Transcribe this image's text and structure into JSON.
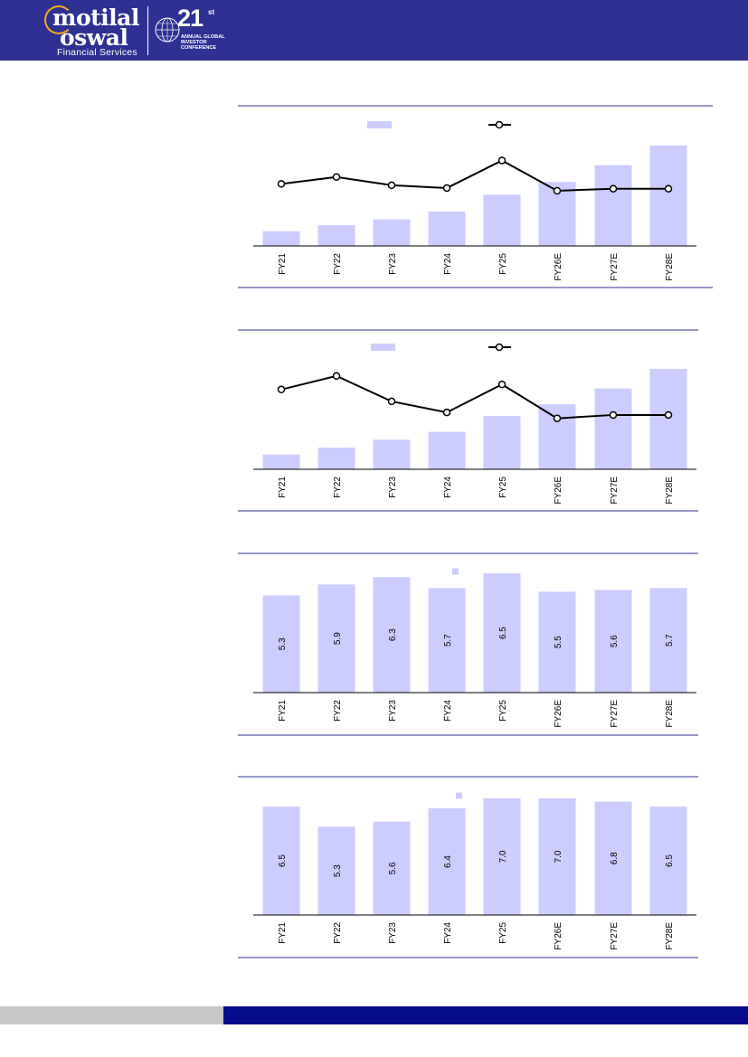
{
  "header": {
    "brand_line1": "motilal",
    "brand_line2": "oswal",
    "brand_line3": "Financial Services",
    "conference_number": "21",
    "conference_suffix": "st",
    "conference_lines": [
      "ANNUAL GLOBAL",
      "INVESTOR",
      "CONFERENCE"
    ]
  },
  "colors": {
    "header_bg": "#2e3192",
    "bar": "#ccccff",
    "line": "#000000",
    "rule": "#2e3192",
    "footer_left": "#c8c8c8",
    "footer_right": "#050c8a"
  },
  "chart_data": [
    {
      "type": "bar",
      "categories": [
        "FY21",
        "FY22",
        "FY23",
        "FY24",
        "FY25",
        "FY26E",
        "FY27E",
        "FY28E"
      ],
      "values": [
        15,
        21,
        27,
        35,
        52,
        65,
        82,
        102
      ],
      "line_values": [
        25,
        30,
        24,
        22,
        42,
        20,
        21.5,
        21.5
      ],
      "legend": [
        "",
        ""
      ],
      "ylim": [
        0,
        112
      ],
      "line_ylim": [
        -20,
        60
      ],
      "data_labels": false
    },
    {
      "type": "bar",
      "categories": [
        "FY21",
        "FY22",
        "FY23",
        "FY24",
        "FY25",
        "FY26E",
        "FY27E",
        "FY28E"
      ],
      "values": [
        15,
        22,
        30,
        38,
        54,
        66,
        82,
        102
      ],
      "line_values": [
        37,
        45,
        30,
        23.5,
        40,
        20,
        22,
        22
      ],
      "legend": [
        "",
        ""
      ],
      "ylim": [
        0,
        112
      ],
      "line_ylim": [
        -10,
        55
      ],
      "data_labels": false
    },
    {
      "type": "bar",
      "categories": [
        "FY21",
        "FY22",
        "FY23",
        "FY24",
        "FY25",
        "FY26E",
        "FY27E",
        "FY28E"
      ],
      "values": [
        5.3,
        5.9,
        6.3,
        5.7,
        6.5,
        5.5,
        5.6,
        5.7
      ],
      "legend": [
        ""
      ],
      "ylim": [
        0,
        7.2
      ],
      "data_labels": true,
      "label_strings": [
        "5.3",
        "5.9",
        "6.3",
        "5.7",
        "6.5",
        "5.5",
        "5.6",
        "5.7"
      ]
    },
    {
      "type": "bar",
      "categories": [
        "FY21",
        "FY22",
        "FY23",
        "FY24",
        "FY25",
        "FY26E",
        "FY27E",
        "FY28E"
      ],
      "values": [
        6.5,
        5.3,
        5.6,
        6.4,
        7.0,
        7.0,
        6.8,
        6.5
      ],
      "legend": [
        ""
      ],
      "ylim": [
        0,
        7.7
      ],
      "data_labels": true,
      "label_strings": [
        "6.5",
        "5.3",
        "5.6",
        "6.4",
        "7.0",
        "7.0",
        "6.8",
        "6.5"
      ]
    }
  ]
}
